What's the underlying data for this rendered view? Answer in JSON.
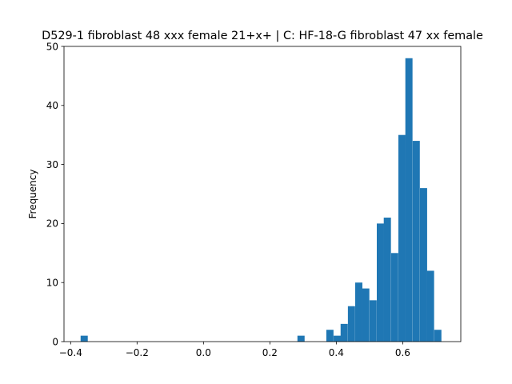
{
  "chart_data": {
    "type": "bar",
    "title": "D529-1 fibroblast 48 xxx female 21+x+ | C: HF-18-G fibroblast 47 xx female",
    "xlabel": "",
    "ylabel": "Frequency",
    "xlim": [
      -0.42,
      0.775
    ],
    "ylim": [
      0,
      50
    ],
    "xticks": [
      -0.4,
      -0.2,
      0.0,
      0.2,
      0.4,
      0.6
    ],
    "xtick_labels": [
      "−0.4",
      "−0.2",
      "0.0",
      "0.2",
      "0.4",
      "0.6"
    ],
    "yticks": [
      0,
      10,
      20,
      30,
      40,
      50
    ],
    "ytick_labels": [
      "0",
      "10",
      "20",
      "30",
      "40",
      "50"
    ],
    "bar_color": "#1f77b4",
    "bin_width": 0.0216,
    "bins": [
      {
        "x0": -0.37,
        "count": 1
      },
      {
        "x0": 0.283,
        "count": 1
      },
      {
        "x0": 0.37,
        "count": 2
      },
      {
        "x0": 0.392,
        "count": 1
      },
      {
        "x0": 0.413,
        "count": 3
      },
      {
        "x0": 0.435,
        "count": 6
      },
      {
        "x0": 0.457,
        "count": 10
      },
      {
        "x0": 0.478,
        "count": 9
      },
      {
        "x0": 0.5,
        "count": 7
      },
      {
        "x0": 0.522,
        "count": 20
      },
      {
        "x0": 0.543,
        "count": 21
      },
      {
        "x0": 0.565,
        "count": 15
      },
      {
        "x0": 0.587,
        "count": 35
      },
      {
        "x0": 0.608,
        "count": 48
      },
      {
        "x0": 0.63,
        "count": 34
      },
      {
        "x0": 0.652,
        "count": 26
      },
      {
        "x0": 0.673,
        "count": 12
      },
      {
        "x0": 0.695,
        "count": 2
      }
    ]
  }
}
